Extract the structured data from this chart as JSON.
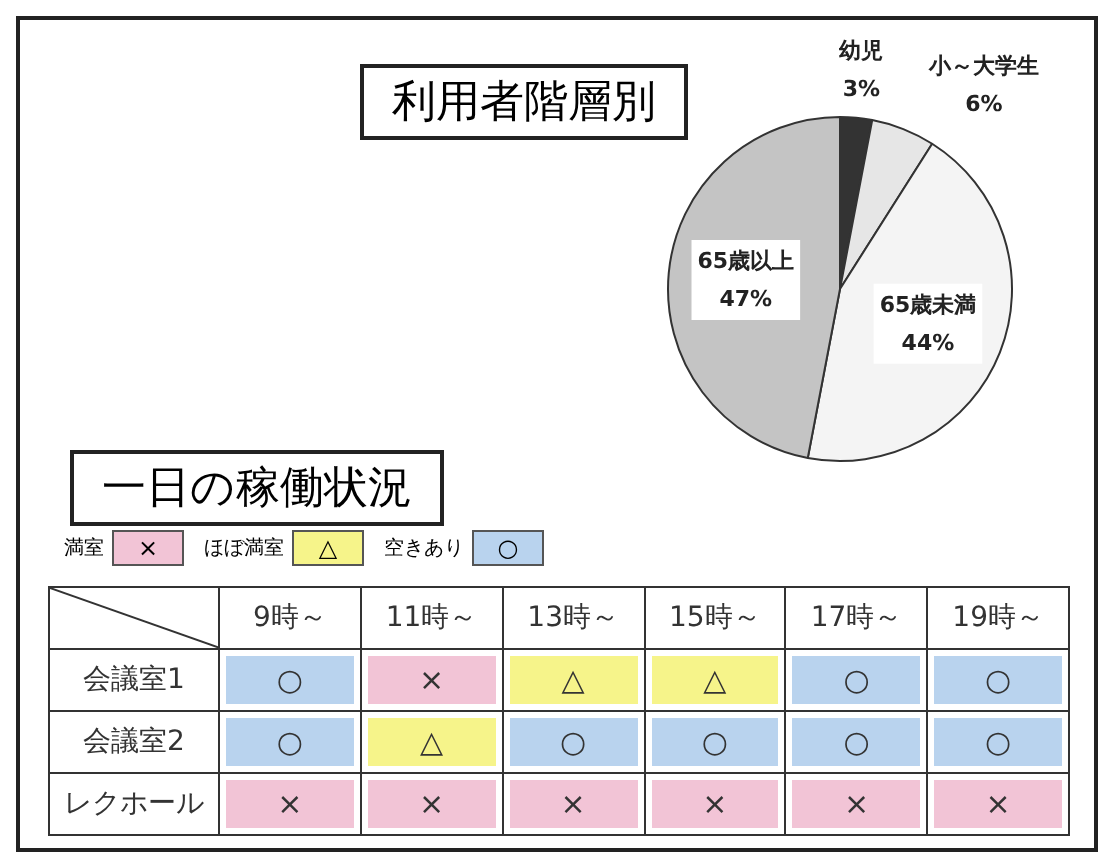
{
  "chart_data": [
    {
      "type": "pie",
      "title": "利用者階層別",
      "categories": [
        "幼児",
        "小～大学生",
        "65歳未満",
        "65歳以上"
      ],
      "values": [
        3,
        6,
        44,
        47
      ],
      "colors": [
        "#333333",
        "#e6e6e6",
        "#f4f4f4",
        "#c4c4c4"
      ],
      "value_labels": [
        "3%",
        "6%",
        "44%",
        "47%"
      ],
      "legend": false
    },
    {
      "type": "heatmap",
      "title": "一日の稼働状況",
      "categories": [
        "9時～",
        "11時～",
        "13時～",
        "15時～",
        "17時～",
        "19時～"
      ],
      "y_categories": [
        "会議室1",
        "会議室2",
        "レクホール"
      ],
      "annotations": [
        "満室",
        "×",
        "ほぼ満室",
        "△",
        "空きあり",
        "○"
      ],
      "colors": [
        "#f2c4d6",
        "#f6f48a",
        "#b9d3ee"
      ],
      "cells": [
        [
          null,
          null,
          null,
          null,
          null,
          null
        ],
        [
          null,
          null,
          null,
          null,
          null,
          null
        ],
        [
          null,
          null,
          null,
          null,
          null,
          null
        ]
      ],
      "cell_labels": [
        [
          "○",
          "×",
          "△",
          "△",
          "○",
          "○"
        ],
        [
          "○",
          "△",
          "○",
          "○",
          "○",
          "○"
        ],
        [
          "×",
          "×",
          "×",
          "×",
          "×",
          "×"
        ]
      ]
    }
  ]
}
